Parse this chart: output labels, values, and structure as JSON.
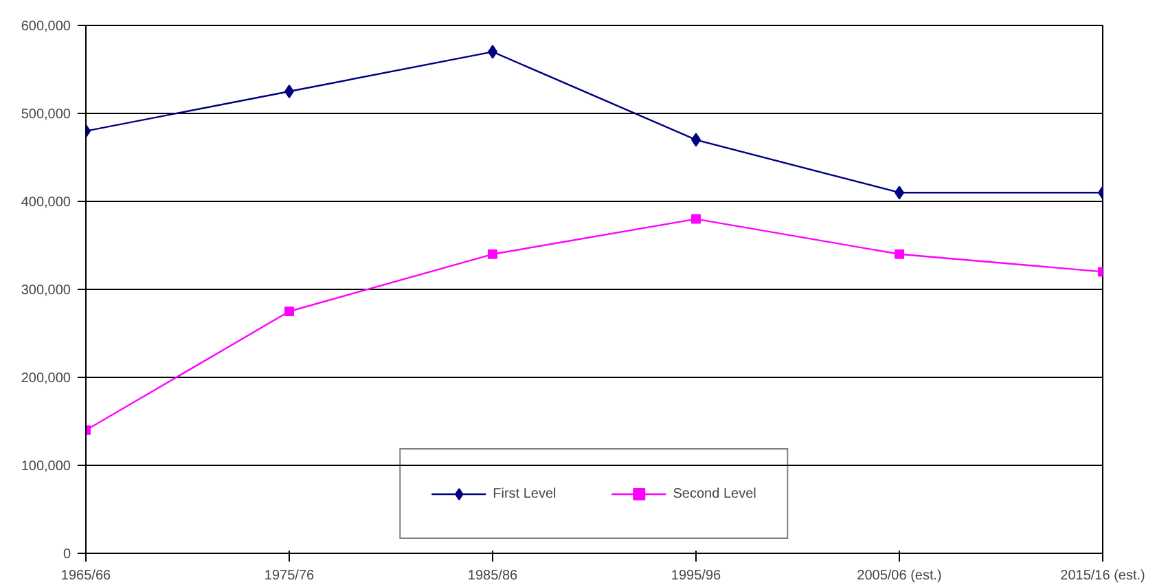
{
  "chart_data": {
    "type": "line",
    "categories": [
      "1965/66",
      "1975/76",
      "1985/86",
      "1995/96",
      "2005/06 (est.)",
      "2015/16 (est.)"
    ],
    "series": [
      {
        "name": "First Level",
        "color": "#000080",
        "marker": "diamond",
        "values": [
          480000,
          525000,
          570000,
          470000,
          410000,
          410000
        ]
      },
      {
        "name": "Second Level",
        "color": "#ff00ff",
        "marker": "square",
        "values": [
          140000,
          275000,
          340000,
          380000,
          340000,
          320000
        ]
      }
    ],
    "ylim": [
      0,
      600000
    ],
    "yticks": [
      {
        "value": 0,
        "label": "0"
      },
      {
        "value": 100000,
        "label": "100,000"
      },
      {
        "value": 200000,
        "label": "200,000"
      },
      {
        "value": 300000,
        "label": "300,000"
      },
      {
        "value": 400000,
        "label": "400,000"
      },
      {
        "value": 500000,
        "label": "500,000"
      },
      {
        "value": 600000,
        "label": "600,000"
      }
    ],
    "grid": "y",
    "legend": "bottom",
    "line_style": "solid"
  }
}
